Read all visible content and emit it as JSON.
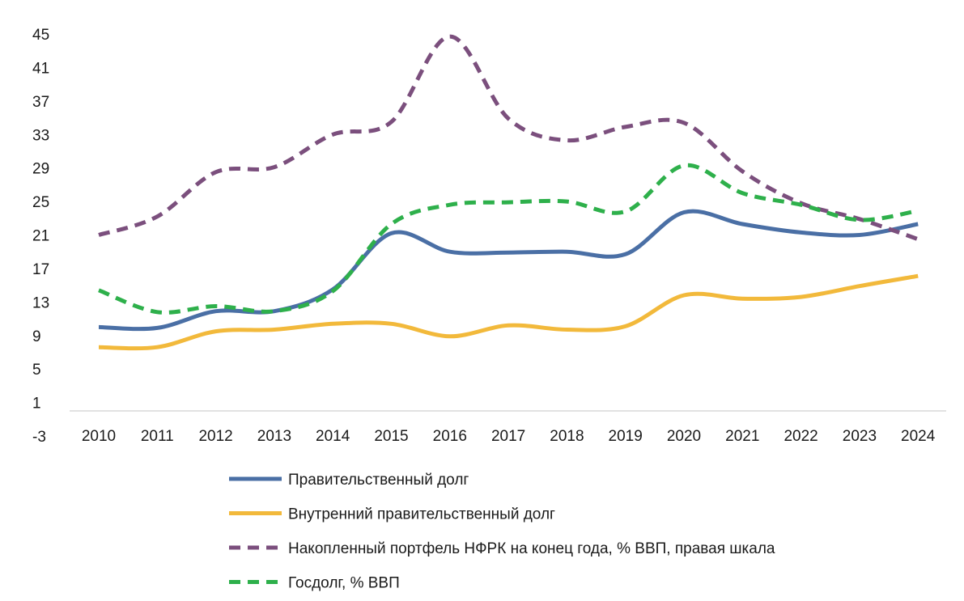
{
  "chart_data": {
    "type": "line",
    "title": "",
    "xlabel": "",
    "ylabel": "",
    "categories": [
      "2010",
      "2011",
      "2012",
      "2013",
      "2014",
      "2015",
      "2016",
      "2017",
      "2018",
      "2019",
      "2020",
      "2021",
      "2022",
      "2023",
      "2024"
    ],
    "y_ticks": [
      "45",
      "41",
      "37",
      "33",
      "29",
      "25",
      "21",
      "17",
      "13",
      "9",
      "5",
      "1",
      "-3"
    ],
    "ylim": [
      -3,
      45
    ],
    "grid": false,
    "legend_position": "bottom",
    "series": [
      {
        "name": "Правительственный долг",
        "color": "#4a6fa5",
        "dash": "solid",
        "values": [
          10.0,
          9.9,
          11.9,
          11.9,
          14.5,
          21.2,
          19.0,
          18.9,
          19.0,
          18.7,
          23.7,
          22.3,
          21.3,
          21.0,
          22.3
        ]
      },
      {
        "name": "Внутренний правительственный долг",
        "color": "#f2b93b",
        "dash": "solid",
        "values": [
          7.6,
          7.6,
          9.5,
          9.7,
          10.4,
          10.4,
          8.9,
          10.2,
          9.7,
          10.1,
          13.8,
          13.4,
          13.6,
          14.9,
          16.1
        ]
      },
      {
        "name": "Накопленный портфель НФРК на конец года, % ВВП, правая шкала",
        "color": "#7b4f7d",
        "dash": "dashed",
        "values": [
          21.0,
          23.2,
          28.5,
          29.1,
          33.0,
          34.5,
          44.7,
          34.9,
          32.3,
          33.9,
          34.4,
          28.6,
          24.8,
          22.9,
          20.5
        ]
      },
      {
        "name": "Госдолг, % ВВП",
        "color": "#2eb04b",
        "dash": "dashed",
        "values": [
          14.4,
          11.8,
          12.5,
          11.9,
          14.3,
          22.3,
          24.6,
          24.9,
          25.0,
          23.8,
          29.3,
          26.0,
          24.6,
          22.8,
          23.9
        ]
      }
    ]
  }
}
